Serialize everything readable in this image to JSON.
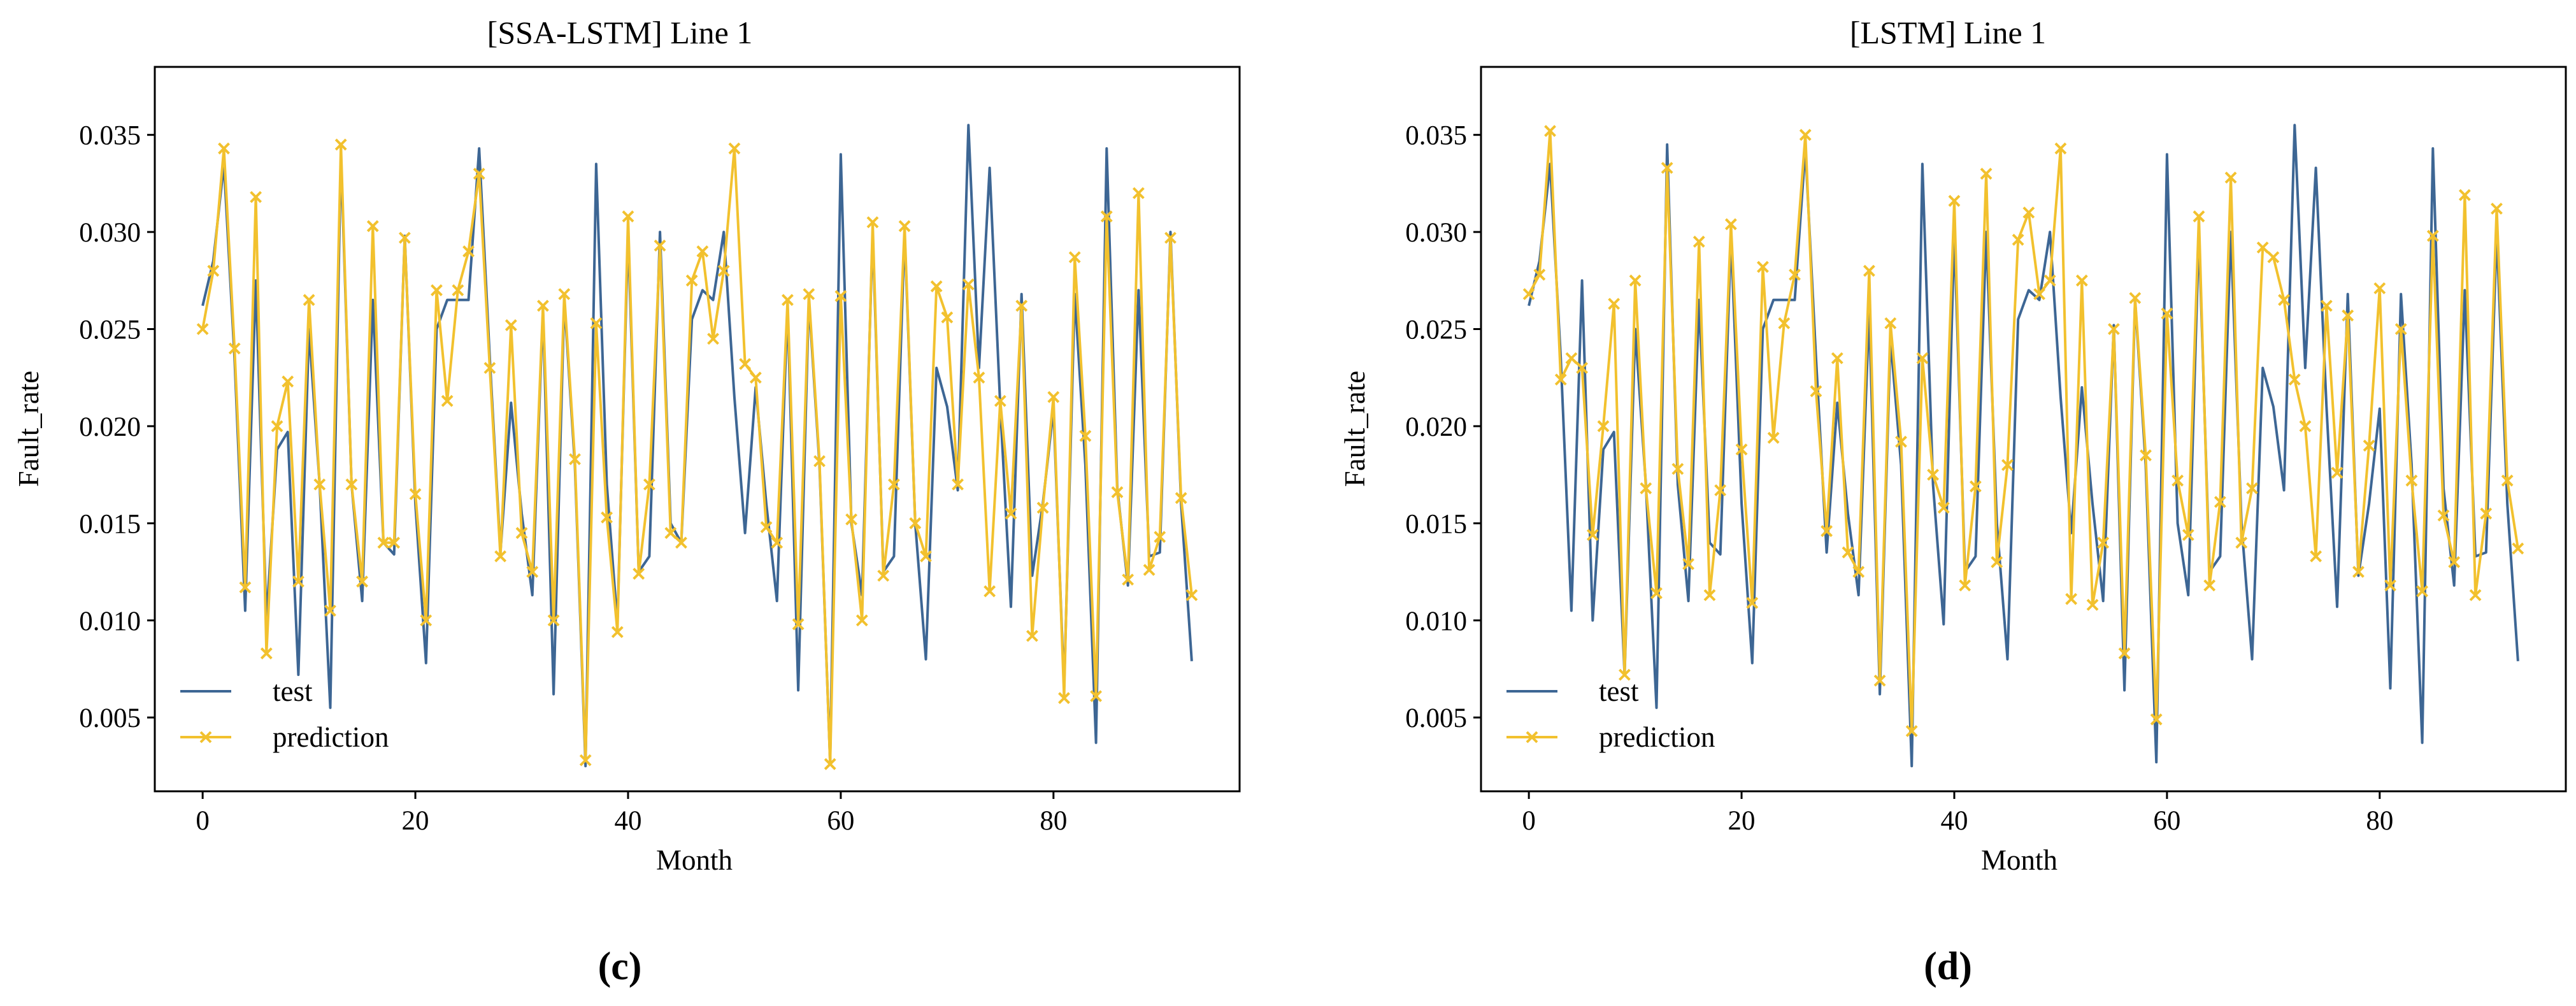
{
  "chart_data": [
    {
      "type": "line",
      "title": "[SSA-LSTM] Line 1",
      "caption": "(c)",
      "xlabel": "Month",
      "ylabel": "Fault_rate",
      "xlim": [
        -4.5,
        97.5
      ],
      "ylim": [
        0.0012,
        0.0385
      ],
      "xticks": [
        0,
        20,
        40,
        60,
        80
      ],
      "yticks": [
        0.005,
        0.01,
        0.015,
        0.02,
        0.025,
        0.03,
        0.035
      ],
      "ytick_labels": [
        "0.005",
        "0.010",
        "0.015",
        "0.020",
        "0.025",
        "0.030",
        "0.035"
      ],
      "legend": [
        "test",
        "prediction"
      ],
      "legend_position": "lower-left",
      "colors": {
        "test": "#3d6694",
        "prediction": "#f2c12e"
      },
      "series": [
        {
          "name": "test",
          "values": [
            0.0262,
            0.0285,
            0.0335,
            0.0235,
            0.0105,
            0.0275,
            0.01,
            0.0188,
            0.0197,
            0.0072,
            0.025,
            0.017,
            0.0055,
            0.034,
            0.017,
            0.011,
            0.0265,
            0.014,
            0.0134,
            0.0298,
            0.016,
            0.0078,
            0.025,
            0.0265,
            0.0265,
            0.0265,
            0.0343,
            0.0235,
            0.0135,
            0.0212,
            0.0155,
            0.0113,
            0.026,
            0.0062,
            0.0265,
            0.018,
            0.0025,
            0.0335,
            0.017,
            0.0098,
            0.03,
            0.0125,
            0.0133,
            0.03,
            0.015,
            0.014,
            0.0255,
            0.027,
            0.0265,
            0.03,
            0.0215,
            0.0145,
            0.022,
            0.016,
            0.011,
            0.0262,
            0.0064,
            0.0265,
            0.018,
            0.0027,
            0.034,
            0.015,
            0.0113,
            0.03,
            0.0125,
            0.0133,
            0.03,
            0.015,
            0.008,
            0.023,
            0.021,
            0.0167,
            0.0355,
            0.023,
            0.0333,
            0.021,
            0.0107,
            0.0268,
            0.0123,
            0.016,
            0.0209,
            0.0065,
            0.0268,
            0.018,
            0.0037,
            0.0343,
            0.0168,
            0.0118,
            0.027,
            0.0133,
            0.0135,
            0.03,
            0.016,
            0.0079
          ]
        },
        {
          "name": "prediction",
          "values": [
            0.025,
            0.028,
            0.0343,
            0.024,
            0.0117,
            0.0318,
            0.0083,
            0.02,
            0.0223,
            0.012,
            0.0265,
            0.017,
            0.0105,
            0.0345,
            0.017,
            0.012,
            0.0303,
            0.014,
            0.014,
            0.0297,
            0.0165,
            0.01,
            0.027,
            0.0213,
            0.027,
            0.029,
            0.033,
            0.023,
            0.0133,
            0.0252,
            0.0145,
            0.0125,
            0.0262,
            0.01,
            0.0268,
            0.0183,
            0.0028,
            0.0253,
            0.0153,
            0.0094,
            0.0308,
            0.0124,
            0.017,
            0.0293,
            0.0145,
            0.014,
            0.0275,
            0.029,
            0.0245,
            0.028,
            0.0343,
            0.0232,
            0.0225,
            0.0148,
            0.014,
            0.0265,
            0.0098,
            0.0268,
            0.0182,
            0.0026,
            0.0267,
            0.0152,
            0.01,
            0.0305,
            0.0123,
            0.017,
            0.0303,
            0.015,
            0.0133,
            0.0272,
            0.0256,
            0.017,
            0.0273,
            0.0225,
            0.0115,
            0.0213,
            0.0155,
            0.0262,
            0.0092,
            0.0158,
            0.0215,
            0.006,
            0.0287,
            0.0195,
            0.0061,
            0.0308,
            0.0166,
            0.0121,
            0.032,
            0.0126,
            0.0143,
            0.0297,
            0.0163,
            0.0113
          ]
        }
      ]
    },
    {
      "type": "line",
      "title": "[LSTM] Line 1",
      "caption": "(d)",
      "xlabel": "Month",
      "ylabel": "Fault_rate",
      "xlim": [
        -4.5,
        97.5
      ],
      "ylim": [
        0.0012,
        0.0385
      ],
      "xticks": [
        0,
        20,
        40,
        60,
        80
      ],
      "yticks": [
        0.005,
        0.01,
        0.015,
        0.02,
        0.025,
        0.03,
        0.035
      ],
      "ytick_labels": [
        "0.005",
        "0.010",
        "0.015",
        "0.020",
        "0.025",
        "0.030",
        "0.035"
      ],
      "legend": [
        "test",
        "prediction"
      ],
      "legend_position": "lower-left",
      "colors": {
        "test": "#3d6694",
        "prediction": "#f2c12e"
      },
      "series": [
        {
          "name": "test",
          "values": [
            0.0262,
            0.0285,
            0.0335,
            0.0235,
            0.0105,
            0.0275,
            0.01,
            0.0188,
            0.0197,
            0.0072,
            0.025,
            0.017,
            0.0055,
            0.0345,
            0.017,
            0.011,
            0.0265,
            0.014,
            0.0134,
            0.0298,
            0.016,
            0.0078,
            0.025,
            0.0265,
            0.0265,
            0.0265,
            0.0343,
            0.0235,
            0.0135,
            0.0212,
            0.0155,
            0.0113,
            0.026,
            0.0062,
            0.0245,
            0.018,
            0.0025,
            0.0335,
            0.017,
            0.0098,
            0.03,
            0.0125,
            0.0133,
            0.03,
            0.015,
            0.008,
            0.0255,
            0.027,
            0.0265,
            0.03,
            0.0215,
            0.0145,
            0.022,
            0.016,
            0.011,
            0.0252,
            0.0064,
            0.0265,
            0.018,
            0.0027,
            0.034,
            0.015,
            0.0113,
            0.03,
            0.0125,
            0.0133,
            0.03,
            0.015,
            0.008,
            0.023,
            0.021,
            0.0167,
            0.0355,
            0.023,
            0.0333,
            0.021,
            0.0107,
            0.0268,
            0.0123,
            0.016,
            0.0209,
            0.0065,
            0.0268,
            0.018,
            0.0037,
            0.0343,
            0.0168,
            0.0118,
            0.027,
            0.0133,
            0.0135,
            0.03,
            0.016,
            0.0079
          ]
        },
        {
          "name": "prediction",
          "values": [
            0.0268,
            0.0278,
            0.0352,
            0.0224,
            0.0235,
            0.023,
            0.0144,
            0.02,
            0.0263,
            0.0072,
            0.0275,
            0.0168,
            0.0114,
            0.0333,
            0.0178,
            0.0129,
            0.0295,
            0.0113,
            0.0167,
            0.0304,
            0.0188,
            0.0109,
            0.0282,
            0.0194,
            0.0253,
            0.0278,
            0.035,
            0.0218,
            0.0146,
            0.0235,
            0.0135,
            0.0125,
            0.028,
            0.0069,
            0.0253,
            0.0192,
            0.0043,
            0.0235,
            0.0175,
            0.0158,
            0.0316,
            0.0118,
            0.0169,
            0.033,
            0.013,
            0.018,
            0.0296,
            0.031,
            0.0268,
            0.0275,
            0.0343,
            0.0111,
            0.0275,
            0.0108,
            0.014,
            0.025,
            0.0083,
            0.0266,
            0.0185,
            0.0049,
            0.0258,
            0.0172,
            0.0144,
            0.0308,
            0.0118,
            0.0161,
            0.0328,
            0.014,
            0.0168,
            0.0292,
            0.0287,
            0.0265,
            0.0224,
            0.02,
            0.0133,
            0.0262,
            0.0176,
            0.0257,
            0.0125,
            0.019,
            0.0271,
            0.0118,
            0.025,
            0.0172,
            0.0115,
            0.0298,
            0.0154,
            0.013,
            0.0319,
            0.0113,
            0.0155,
            0.0312,
            0.0172,
            0.0137
          ]
        }
      ]
    }
  ]
}
